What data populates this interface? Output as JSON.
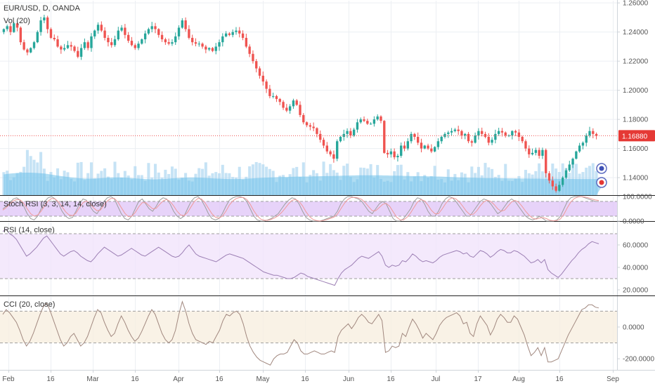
{
  "header": {
    "symbol_title": "EUR/USD, D, OANDA",
    "volume_label": "Vol (20)"
  },
  "price_badge": {
    "value": "1.16880",
    "color": "#e53935"
  },
  "colors": {
    "up": "#26a69a",
    "down": "#ef5350",
    "grid": "#eceff3",
    "axis": "#cfd4da",
    "volume": "#b3d9f2",
    "volume_ma": "#6ec1ea",
    "stoch_fill": "#e1c8f7",
    "rsi_fill": "#f1e4fb",
    "cci_fill": "#f7efe0",
    "osc_line": "#a1887f",
    "stoch_k": "#9e9e9e",
    "stoch_d": "#ef9a9a"
  },
  "chart_data": [
    {
      "type": "candlestick",
      "title": "EUR/USD, D, OANDA",
      "price_axis_ticks": [
        "1.26000",
        "1.24000",
        "1.22000",
        "1.20000",
        "1.18000",
        "1.16000",
        "1.14000"
      ],
      "ylim": [
        1.128,
        1.262
      ],
      "last_price": 1.1688,
      "x_ticks": [
        "Feb",
        "16",
        "Mar",
        "16",
        "Apr",
        "16",
        "May",
        "16",
        "Jun",
        "16",
        "Jul",
        "17",
        "Aug",
        "16",
        "Sep"
      ],
      "closes": [
        1.242,
        1.244,
        1.24,
        1.246,
        1.243,
        1.233,
        1.228,
        1.226,
        1.229,
        1.233,
        1.24,
        1.248,
        1.25,
        1.242,
        1.236,
        1.235,
        1.23,
        1.228,
        1.229,
        1.231,
        1.23,
        1.227,
        1.223,
        1.229,
        1.233,
        1.229,
        1.237,
        1.241,
        1.245,
        1.241,
        1.236,
        1.233,
        1.231,
        1.235,
        1.241,
        1.243,
        1.238,
        1.234,
        1.231,
        1.229,
        1.232,
        1.235,
        1.239,
        1.242,
        1.244,
        1.242,
        1.238,
        1.235,
        1.233,
        1.232,
        1.233,
        1.237,
        1.243,
        1.248,
        1.242,
        1.236,
        1.233,
        1.232,
        1.232,
        1.23,
        1.228,
        1.229,
        1.227,
        1.23,
        1.233,
        1.237,
        1.239,
        1.238,
        1.24,
        1.241,
        1.239,
        1.236,
        1.23,
        1.225,
        1.22,
        1.215,
        1.21,
        1.206,
        1.201,
        1.196,
        1.196,
        1.194,
        1.192,
        1.188,
        1.186,
        1.189,
        1.193,
        1.19,
        1.183,
        1.178,
        1.176,
        1.175,
        1.174,
        1.17,
        1.166,
        1.162,
        1.158,
        1.156,
        1.153,
        1.165,
        1.168,
        1.17,
        1.172,
        1.169,
        1.173,
        1.178,
        1.18,
        1.179,
        1.177,
        1.177,
        1.18,
        1.182,
        1.179,
        1.157,
        1.156,
        1.158,
        1.154,
        1.155,
        1.162,
        1.16,
        1.165,
        1.17,
        1.168,
        1.164,
        1.16,
        1.162,
        1.16,
        1.158,
        1.161,
        1.165,
        1.168,
        1.17,
        1.171,
        1.172,
        1.173,
        1.172,
        1.169,
        1.17,
        1.165,
        1.164,
        1.169,
        1.172,
        1.17,
        1.168,
        1.164,
        1.166,
        1.17,
        1.172,
        1.171,
        1.169,
        1.169,
        1.172,
        1.171,
        1.168,
        1.165,
        1.16,
        1.156,
        1.157,
        1.159,
        1.155,
        1.159,
        1.143,
        1.138,
        1.134,
        1.131,
        1.135,
        1.14,
        1.145,
        1.149,
        1.153,
        1.158,
        1.162,
        1.164,
        1.169,
        1.172,
        1.17,
        1.1688
      ],
      "volume_ma": [
        1.1422,
        1.1425,
        1.1428,
        1.143,
        1.1432,
        1.1433,
        1.1434,
        1.1434,
        1.1434,
        1.1433,
        1.1432,
        1.143,
        1.1428,
        1.1425,
        1.1421,
        1.1418,
        1.1414,
        1.1411,
        1.1408,
        1.1405,
        1.1402,
        1.1399,
        1.1397,
        1.1395,
        1.1394,
        1.1393,
        1.1393,
        1.1394,
        1.1395,
        1.1397,
        1.1398,
        1.14,
        1.1401,
        1.1401,
        1.1401,
        1.1401,
        1.14,
        1.1399,
        1.1397,
        1.1395,
        1.1393,
        1.1392,
        1.139,
        1.1389,
        1.1388,
        1.1388,
        1.1389,
        1.139,
        1.1391,
        1.1393,
        1.1395,
        1.1396,
        1.1398,
        1.1399,
        1.14,
        1.1401,
        1.1401,
        1.1401,
        1.14,
        1.1399,
        1.1398,
        1.1397,
        1.1395,
        1.1394,
        1.1393,
        1.1392,
        1.1391,
        1.139,
        1.139,
        1.139,
        1.1391,
        1.1392,
        1.1393,
        1.1394,
        1.1395,
        1.1397,
        1.1398,
        1.1399,
        1.14,
        1.1401,
        1.1402,
        1.1403,
        1.1404,
        1.1405,
        1.1405,
        1.1406,
        1.1406,
        1.1407,
        1.1407,
        1.1407,
        1.1408,
        1.1408,
        1.1409,
        1.1409,
        1.141,
        1.141,
        1.1411,
        1.1411,
        1.1412,
        1.1412,
        1.1413,
        1.1414,
        1.1414,
        1.1415,
        1.1415,
        1.1416,
        1.1416,
        1.1416,
        1.1416,
        1.1416,
        1.1416,
        1.1416,
        1.1416,
        1.1415,
        1.1415,
        1.1414,
        1.1414,
        1.1413,
        1.1413,
        1.1412,
        1.1412,
        1.1411,
        1.1411,
        1.141,
        1.141,
        1.141,
        1.1409,
        1.1409,
        1.1408,
        1.1408,
        1.1407,
        1.1406,
        1.1405,
        1.1404,
        1.1403,
        1.1402,
        1.1401,
        1.14,
        1.14,
        1.1399,
        1.1399,
        1.1398,
        1.1398,
        1.1397,
        1.1397,
        1.1397,
        1.1396,
        1.1396,
        1.1396,
        1.1395,
        1.1395,
        1.1395,
        1.1394,
        1.1394,
        1.1394,
        1.1394,
        1.1393,
        1.1393,
        1.1393,
        1.1393,
        1.1392,
        1.1392,
        1.1392,
        1.1392,
        1.1392,
        1.1391,
        1.1391,
        1.1391,
        1.1391,
        1.1391,
        1.139,
        1.139,
        1.139,
        1.139,
        1.139,
        1.139,
        1.139,
        1.139,
        1.139,
        1.139
      ]
    },
    {
      "type": "line",
      "title": "Stoch RSI (3, 3, 14, 14, close)",
      "y_ticks": [
        "100.0000",
        "0.0000"
      ],
      "ylim": [
        0,
        100
      ],
      "bands": [
        20,
        80
      ],
      "series": [
        {
          "values": [
            50,
            60,
            75,
            90,
            95,
            85,
            60,
            30,
            10,
            5,
            20,
            50,
            80,
            95,
            100,
            90,
            70,
            40,
            20,
            10,
            15,
            40,
            70,
            90,
            85,
            60,
            40,
            30,
            50,
            80,
            95,
            100,
            90,
            60,
            30,
            10,
            5,
            20,
            50,
            80,
            90,
            70,
            50,
            40,
            60,
            85,
            95,
            90,
            70,
            40,
            20,
            10,
            20,
            50,
            80,
            95,
            100,
            85,
            60,
            30,
            10,
            5,
            10,
            30,
            60,
            85,
            95,
            100,
            100,
            95,
            80,
            50,
            20,
            5,
            0,
            0,
            5,
            10,
            20,
            30,
            50,
            70,
            85,
            95,
            90,
            70,
            40,
            15,
            5,
            0,
            0,
            0,
            5,
            10,
            15,
            20,
            40,
            70,
            90,
            100,
            100,
            95,
            90,
            80,
            60,
            40,
            30,
            50,
            70,
            80,
            70,
            40,
            10,
            0,
            0,
            10,
            30,
            50,
            80,
            95,
            90,
            70,
            40,
            20,
            20,
            40,
            70,
            90,
            100,
            95,
            80,
            60,
            40,
            20,
            20,
            40,
            60,
            80,
            90,
            85,
            70,
            50,
            30,
            40,
            60,
            80,
            90,
            80,
            60,
            40,
            20,
            10,
            5,
            10,
            20,
            10,
            0,
            0,
            0,
            5,
            20,
            50,
            80,
            95,
            100,
            100,
            100,
            95,
            90,
            85,
            80,
            80
          ]
        },
        {
          "values": [
            45,
            55,
            70,
            82,
            88,
            86,
            72,
            50,
            30,
            20,
            25,
            40,
            62,
            82,
            92,
            90,
            78,
            58,
            38,
            25,
            22,
            32,
            55,
            75,
            82,
            72,
            55,
            42,
            45,
            65,
            82,
            92,
            92,
            78,
            55,
            32,
            18,
            20,
            35,
            58,
            75,
            75,
            62,
            50,
            52,
            68,
            82,
            88,
            80,
            62,
            40,
            25,
            22,
            35,
            58,
            80,
            92,
            90,
            75,
            52,
            30,
            16,
            12,
            20,
            40,
            65,
            82,
            92,
            96,
            96,
            88,
            68,
            42,
            22,
            8,
            3,
            3,
            7,
            13,
            22,
            35,
            52,
            70,
            85,
            88,
            80,
            62,
            38,
            18,
            7,
            2,
            0,
            2,
            6,
            11,
            16,
            28,
            50,
            72,
            88,
            96,
            97,
            94,
            88,
            75,
            58,
            42,
            42,
            55,
            68,
            72,
            60,
            38,
            16,
            5,
            5,
            16,
            33,
            56,
            78,
            88,
            82,
            65,
            43,
            30,
            30,
            48,
            70,
            88,
            95,
            90,
            78,
            60,
            40,
            27,
            28,
            42,
            62,
            78,
            85,
            80,
            67,
            50,
            40,
            45,
            62,
            78,
            84,
            77,
            60,
            40,
            24,
            12,
            8,
            12,
            14,
            10,
            3,
            1,
            2,
            9,
            28,
            55,
            78,
            92,
            98,
            100,
            98,
            95,
            90,
            86,
            84
          ]
        }
      ]
    },
    {
      "type": "line",
      "title": "RSI (14, close)",
      "y_ticks": [
        "60.0000",
        "40.0000",
        "20.0000"
      ],
      "ylim": [
        15,
        80
      ],
      "bands": [
        30,
        70
      ],
      "series": [
        {
          "values": [
            72,
            74,
            70,
            68,
            65,
            60,
            55,
            50,
            52,
            55,
            58,
            62,
            66,
            68,
            64,
            60,
            56,
            52,
            50,
            52,
            54,
            55,
            53,
            50,
            48,
            46,
            45,
            48,
            52,
            55,
            58,
            56,
            54,
            52,
            50,
            51,
            53,
            55,
            57,
            55,
            53,
            51,
            50,
            52,
            54,
            56,
            58,
            56,
            54,
            52,
            50,
            49,
            50,
            53,
            57,
            60,
            56,
            52,
            50,
            49,
            48,
            47,
            46,
            45,
            47,
            49,
            51,
            52,
            51,
            50,
            49,
            48,
            46,
            44,
            42,
            40,
            38,
            36,
            35,
            34,
            33,
            33,
            32,
            31,
            30,
            30,
            31,
            33,
            35,
            34,
            32,
            31,
            30,
            29,
            28,
            27,
            26,
            25,
            24,
            30,
            35,
            38,
            40,
            42,
            45,
            48,
            50,
            49,
            48,
            50,
            52,
            54,
            50,
            42,
            40,
            42,
            41,
            42,
            46,
            45,
            48,
            52,
            50,
            47,
            45,
            46,
            45,
            44,
            46,
            49,
            51,
            52,
            53,
            54,
            55,
            54,
            52,
            53,
            50,
            49,
            52,
            55,
            54,
            52,
            49,
            51,
            54,
            56,
            55,
            53,
            53,
            55,
            54,
            52,
            50,
            47,
            44,
            45,
            47,
            44,
            47,
            38,
            35,
            33,
            31,
            34,
            38,
            42,
            46,
            49,
            53,
            56,
            58,
            61,
            63,
            62,
            61
          ]
        }
      ]
    },
    {
      "type": "line",
      "title": "CCI (20, close)",
      "y_ticks": [
        "0.0000",
        "-200.0000"
      ],
      "ylim": [
        -270,
        190
      ],
      "bands": [
        -100,
        100
      ],
      "series": [
        {
          "values": [
            80,
            110,
            90,
            60,
            30,
            -20,
            -80,
            -120,
            -90,
            -40,
            20,
            80,
            130,
            150,
            100,
            40,
            -20,
            -80,
            -120,
            -100,
            -60,
            -40,
            -80,
            -120,
            -100,
            -60,
            0,
            60,
            110,
            90,
            30,
            -20,
            -60,
            -40,
            20,
            70,
            30,
            -20,
            -60,
            -90,
            -70,
            -30,
            20,
            70,
            110,
            80,
            20,
            -40,
            -80,
            -100,
            -80,
            -20,
            80,
            160,
            100,
            20,
            -40,
            -80,
            -90,
            -100,
            -110,
            -90,
            -100,
            -60,
            -20,
            40,
            80,
            70,
            90,
            100,
            80,
            20,
            -60,
            -120,
            -160,
            -190,
            -210,
            -220,
            -230,
            -240,
            -200,
            -180,
            -170,
            -170,
            -160,
            -120,
            -80,
            -100,
            -150,
            -170,
            -170,
            -160,
            -150,
            -160,
            -170,
            -170,
            -160,
            -150,
            -160,
            -60,
            -20,
            0,
            20,
            -10,
            20,
            60,
            80,
            60,
            30,
            20,
            50,
            80,
            40,
            -160,
            -150,
            -120,
            -130,
            -120,
            -40,
            -60,
            0,
            50,
            20,
            -20,
            -70,
            -40,
            -60,
            -80,
            -40,
            10,
            40,
            60,
            70,
            80,
            90,
            70,
            20,
            30,
            -40,
            -60,
            20,
            70,
            40,
            10,
            -50,
            -10,
            50,
            80,
            60,
            30,
            30,
            70,
            50,
            0,
            -50,
            -120,
            -180,
            -160,
            -130,
            -180,
            -130,
            -220,
            -220,
            -210,
            -200,
            -150,
            -100,
            -50,
            -10,
            30,
            70,
            110,
            120,
            140,
            140,
            125,
            120
          ]
        }
      ]
    }
  ]
}
